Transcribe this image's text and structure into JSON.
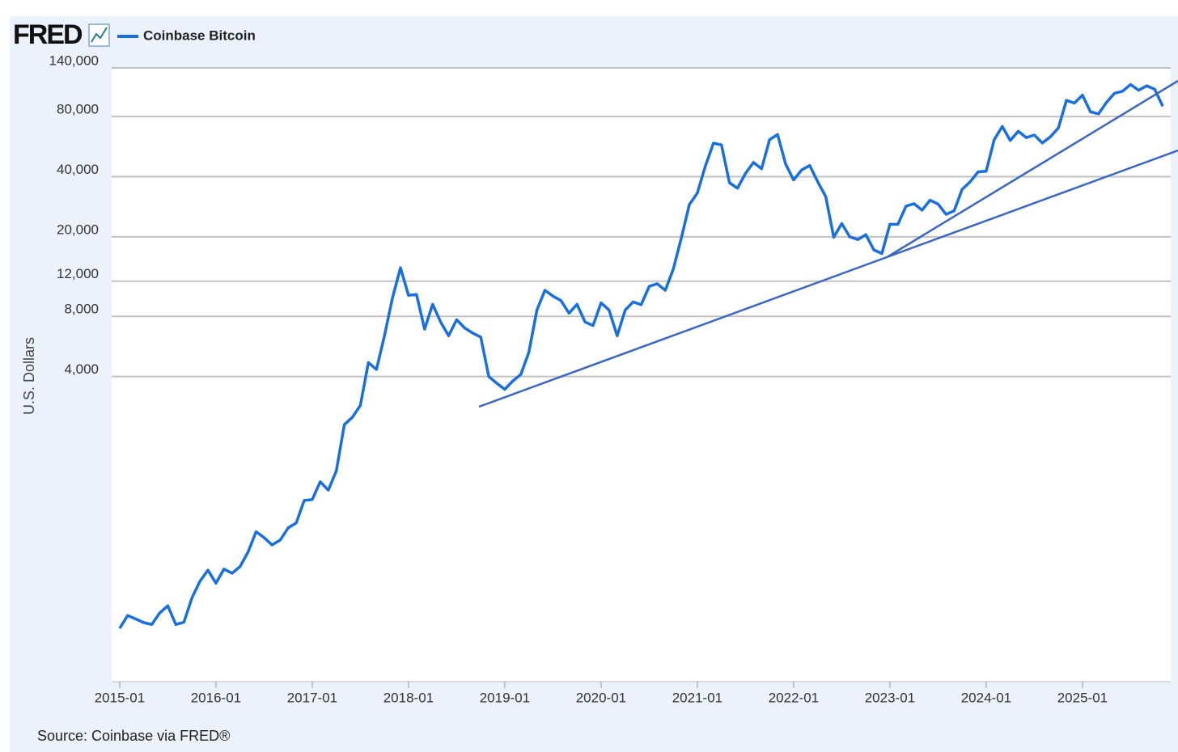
{
  "logo": "FRED",
  "source": "Source: Coinbase via FRED®",
  "chart_data": {
    "type": "line",
    "ylabel": "U.S. Dollars",
    "log_scale": true,
    "grid": true,
    "legend": "top-left",
    "x": [
      "2015-01",
      "2015-02",
      "2015-03",
      "2015-04",
      "2015-05",
      "2015-06",
      "2015-07",
      "2015-08",
      "2015-09",
      "2015-10",
      "2015-11",
      "2015-12",
      "2016-01",
      "2016-02",
      "2016-03",
      "2016-04",
      "2016-05",
      "2016-06",
      "2016-07",
      "2016-08",
      "2016-09",
      "2016-10",
      "2016-11",
      "2016-12",
      "2017-01",
      "2017-02",
      "2017-03",
      "2017-04",
      "2017-05",
      "2017-06",
      "2017-07",
      "2017-08",
      "2017-09",
      "2017-10",
      "2017-11",
      "2017-12",
      "2018-01",
      "2018-02",
      "2018-03",
      "2018-04",
      "2018-05",
      "2018-06",
      "2018-07",
      "2018-08",
      "2018-09",
      "2018-10",
      "2018-11",
      "2018-12",
      "2019-01",
      "2019-02",
      "2019-03",
      "2019-04",
      "2019-05",
      "2019-06",
      "2019-07",
      "2019-08",
      "2019-09",
      "2019-10",
      "2019-11",
      "2019-12",
      "2020-01",
      "2020-02",
      "2020-03",
      "2020-04",
      "2020-05",
      "2020-06",
      "2020-07",
      "2020-08",
      "2020-09",
      "2020-10",
      "2020-11",
      "2020-12",
      "2021-01",
      "2021-02",
      "2021-03",
      "2021-04",
      "2021-05",
      "2021-06",
      "2021-07",
      "2021-08",
      "2021-09",
      "2021-10",
      "2021-11",
      "2021-12",
      "2022-01",
      "2022-02",
      "2022-03",
      "2022-04",
      "2022-05",
      "2022-06",
      "2022-07",
      "2022-08",
      "2022-09",
      "2022-10",
      "2022-11",
      "2022-12",
      "2023-01",
      "2023-02",
      "2023-03",
      "2023-04",
      "2023-05",
      "2023-06",
      "2023-07",
      "2023-08",
      "2023-09",
      "2023-10",
      "2023-11",
      "2023-12",
      "2024-01",
      "2024-02",
      "2024-03",
      "2024-04",
      "2024-05",
      "2024-06",
      "2024-07",
      "2024-08",
      "2024-09",
      "2024-10",
      "2024-11",
      "2024-12",
      "2025-01",
      "2025-02",
      "2025-03",
      "2025-04",
      "2025-05",
      "2025-06",
      "2025-07",
      "2025-08",
      "2025-09",
      "2025-10",
      "2025-11"
    ],
    "series": [
      {
        "name": "Coinbase Bitcoin",
        "color": "#1a6fdf",
        "values": [
          220,
          255,
          245,
          235,
          230,
          263,
          285,
          230,
          236,
          312,
          378,
          430,
          370,
          435,
          415,
          448,
          530,
          670,
          625,
          575,
          608,
          700,
          740,
          960,
          970,
          1190,
          1080,
          1350,
          2300,
          2500,
          2870,
          4700,
          4340,
          6400,
          9900,
          14000,
          10200,
          10300,
          6900,
          9200,
          7500,
          6400,
          7700,
          7000,
          6600,
          6300,
          4000,
          3700,
          3450,
          3800,
          4100,
          5300,
          8600,
          10800,
          10100,
          9600,
          8300,
          9200,
          7500,
          7200,
          9350,
          8600,
          6400,
          8600,
          9450,
          9150,
          11300,
          11650,
          10800,
          13800,
          19700,
          29000,
          33100,
          45200,
          58800,
          57700,
          37300,
          35000,
          41500,
          47100,
          43800,
          61300,
          65000,
          46300,
          38500,
          43200,
          45500,
          37700,
          31800,
          19900,
          23300,
          20000,
          19400,
          20500,
          17200,
          16500,
          23100,
          23100,
          28500,
          29300,
          27200,
          30500,
          29200,
          25900,
          27000,
          34600,
          37700,
          42300,
          42600,
          61200,
          71300,
          60700,
          67500,
          62700,
          64600,
          59000,
          63300,
          70200,
          96400,
          93400,
          102400,
          84400,
          82500,
          94200,
          104600,
          107100,
          115700,
          108300,
          114000,
          109500,
          90000
        ]
      }
    ],
    "xlim": [
      "2014-12",
      "2025-12"
    ],
    "xticks": [
      "2015-01",
      "2016-01",
      "2017-01",
      "2018-01",
      "2019-01",
      "2020-01",
      "2021-01",
      "2022-01",
      "2023-01",
      "2024-01",
      "2025-01"
    ],
    "ylim": [
      119,
      140000
    ],
    "yticks": [
      {
        "value": 4000,
        "label": "4,000"
      },
      {
        "value": 8000,
        "label": "8,000"
      },
      {
        "value": 12000,
        "label": "12,000"
      },
      {
        "value": 20000,
        "label": "20,000"
      },
      {
        "value": 40000,
        "label": "40,000"
      },
      {
        "value": 80000,
        "label": "80,000"
      },
      {
        "value": 140000,
        "label": "140,000"
      }
    ]
  }
}
